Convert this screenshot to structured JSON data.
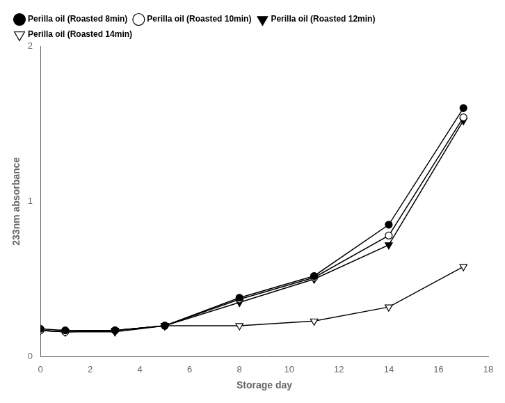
{
  "chart_data": {
    "type": "line",
    "x": [
      0,
      1,
      3,
      5,
      8,
      11,
      14,
      17
    ],
    "series": [
      {
        "name": "Perilla oil (Roasted 8min)",
        "color": "black",
        "marker": "circle",
        "values": [
          0.18,
          0.17,
          0.17,
          0.2,
          0.38,
          0.52,
          0.85,
          1.6
        ]
      },
      {
        "name": "Perilla oil (Roasted 10min)",
        "color": "black",
        "marker": "open_circle",
        "values": [
          0.17,
          0.16,
          0.17,
          0.2,
          0.37,
          0.51,
          0.78,
          1.54
        ]
      },
      {
        "name": "Perilla oil (Roasted 12min)",
        "color": "black",
        "marker": "triangle_down",
        "values": [
          0.17,
          0.16,
          0.16,
          0.2,
          0.35,
          0.5,
          0.72,
          1.52
        ]
      },
      {
        "name": "Perilla oil (Roasted 14min)",
        "color": "black",
        "marker": "open_triangle_down",
        "values": [
          0.17,
          0.16,
          0.17,
          0.2,
          0.2,
          0.23,
          0.32,
          0.58
        ]
      }
    ],
    "x_label": "Storage day",
    "y_label": "233nm absorbance",
    "xlim": [
      0,
      18
    ],
    "ylim": [
      0,
      2.0
    ],
    "xticks": [
      0,
      2,
      4,
      6,
      8,
      10,
      12,
      14,
      16,
      18
    ],
    "yticks": [
      0,
      1,
      2
    ],
    "legend": "upper left",
    "grid": false
  }
}
